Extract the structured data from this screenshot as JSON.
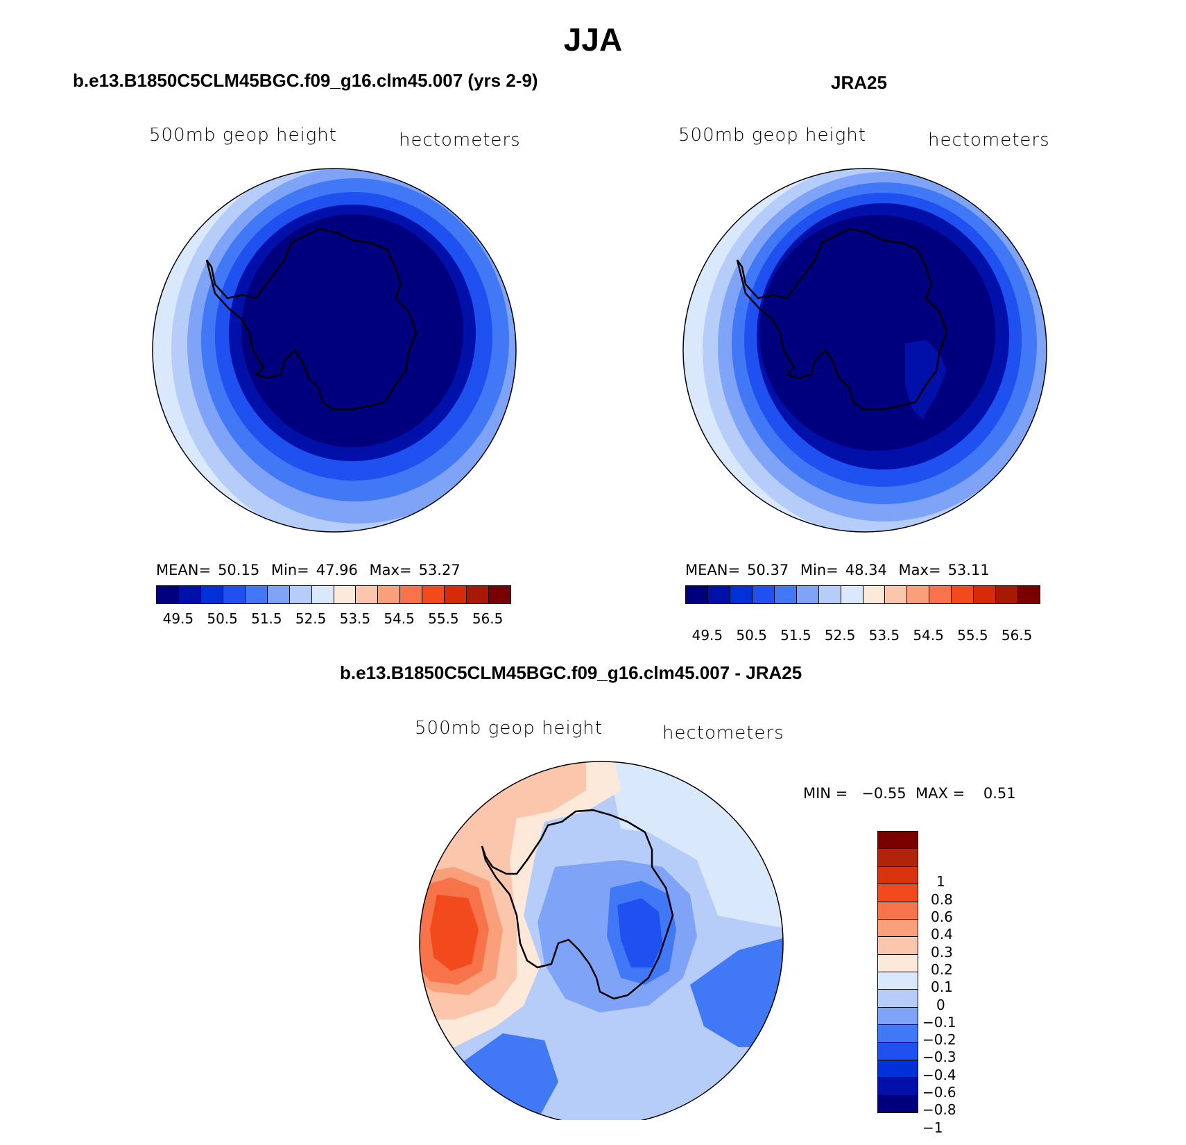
{
  "title": "JJA",
  "panels": {
    "left": {
      "title": "b.e13.B1850C5CLM45BGC.f09_g16.clm45.007 (yrs 2-9)",
      "variable": "500mb geop height",
      "units": "hectometers",
      "mean_label": "MEAN=",
      "mean": "50.15",
      "min_label": "Min=",
      "min": "47.96",
      "max_label": "Max=",
      "max": "53.27"
    },
    "right": {
      "title": "JRA25",
      "variable": "500mb geop height",
      "units": "hectometers",
      "mean_label": "MEAN=",
      "mean": "50.37",
      "min_label": "Min=",
      "min": "48.34",
      "max_label": "Max=",
      "max": "53.11"
    },
    "diff": {
      "title": "b.e13.B1850C5CLM45BGC.f09_g16.clm45.007 - JRA25",
      "variable": "500mb geop height",
      "units": "hectometers",
      "minmax": "MIN =   −0.55  MAX =    0.51"
    }
  },
  "colorbar_main": {
    "colors": [
      "#00007f",
      "#0010a8",
      "#0030d8",
      "#1f50f0",
      "#4178f5",
      "#7fa4f7",
      "#b6cdfa",
      "#d9e8fb",
      "#fde9da",
      "#fbc6ab",
      "#f9a07a",
      "#f7744a",
      "#f24a1d",
      "#d62a08",
      "#a81904",
      "#7a0000"
    ],
    "labels": [
      "49.5",
      "50.5",
      "51.5",
      "52.5",
      "53.5",
      "54.5",
      "55.5",
      "56.5"
    ]
  },
  "colorbar_diff": {
    "colors": [
      "#7a0000",
      "#b0240a",
      "#d8320e",
      "#f24a1d",
      "#f7744a",
      "#f9a07a",
      "#fbc6ab",
      "#fde9da",
      "#d9e8fb",
      "#b6cdfa",
      "#7fa4f7",
      "#4178f5",
      "#1f50f0",
      "#0030d8",
      "#0010a8",
      "#00007f"
    ],
    "labels": [
      "1",
      "0.8",
      "0.6",
      "0.4",
      "0.3",
      "0.2",
      "0.1",
      "0",
      "−0.1",
      "−0.2",
      "−0.3",
      "−0.4",
      "−0.6",
      "−0.8",
      "−1"
    ]
  }
}
